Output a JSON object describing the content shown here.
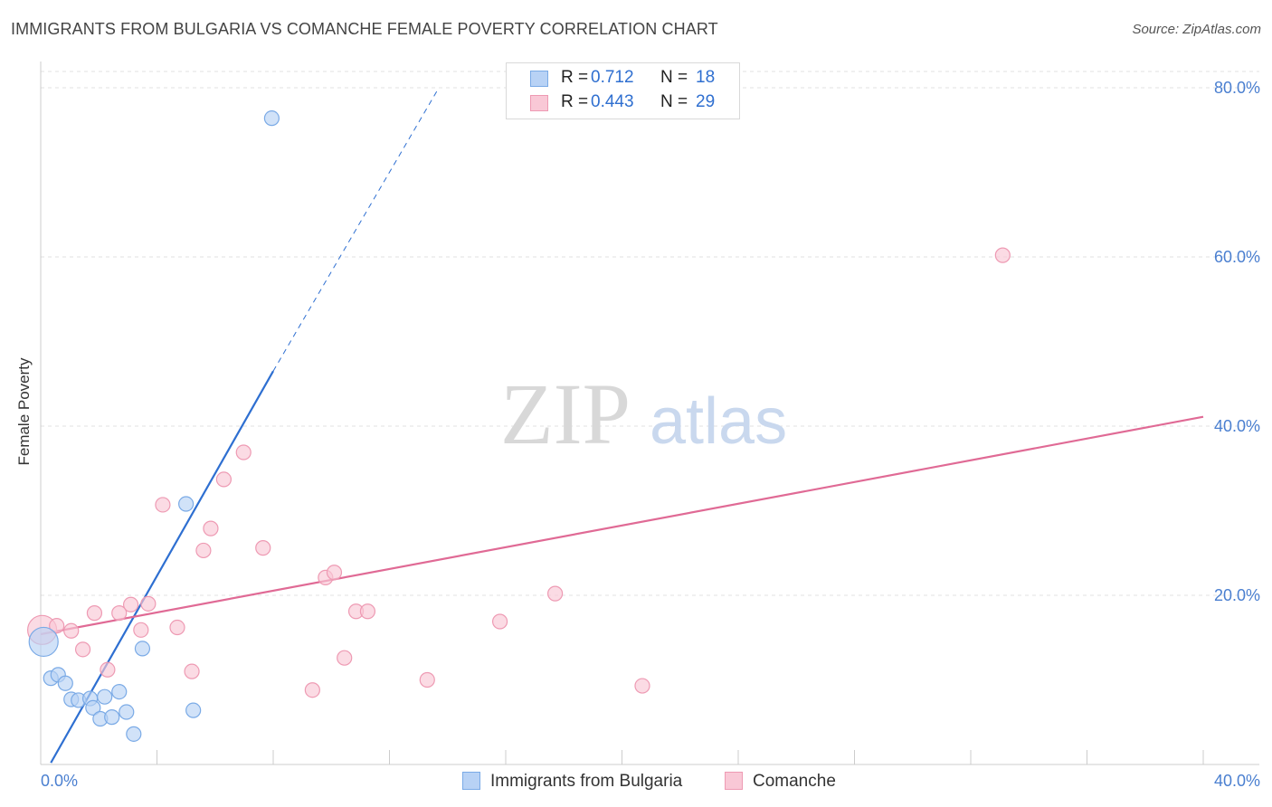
{
  "title": "IMMIGRANTS FROM BULGARIA VS COMANCHE FEMALE POVERTY CORRELATION CHART",
  "source": "Source: ZipAtlas.com",
  "watermark": {
    "zip": "ZIP",
    "atlas": "atlas"
  },
  "colors": {
    "bulgaria_fill": "#b8d2f5",
    "bulgaria_stroke": "#7aaae6",
    "bulgaria_line": "#2e6fd1",
    "comanche_fill": "#f9c8d6",
    "comanche_stroke": "#ee9ab3",
    "comanche_line": "#e06a95",
    "value_text": "#2f6fd0",
    "grid": "#e2e2e2"
  },
  "legend": {
    "rows": [
      {
        "r_label": "R =",
        "r_value": "0.712",
        "n_label": "N =",
        "n_value": "18"
      },
      {
        "r_label": "R =",
        "r_value": "0.443",
        "n_label": "N =",
        "n_value": "29"
      }
    ]
  },
  "bottom_legend": {
    "bulgaria": "Immigrants from Bulgaria",
    "comanche": "Comanche"
  },
  "chart_data": {
    "type": "scatter",
    "title": "IMMIGRANTS FROM BULGARIA VS COMANCHE FEMALE POVERTY CORRELATION CHART",
    "xlabel": "",
    "ylabel": "Female Poverty",
    "xlim": [
      0,
      40
    ],
    "ylim": [
      0,
      80
    ],
    "x_tick_labels": [
      "0.0%",
      "40.0%"
    ],
    "y_ticks": [
      20,
      40,
      60,
      80
    ],
    "y_tick_labels": [
      "20.0%",
      "40.0%",
      "60.0%",
      "80.0%"
    ],
    "grid": true,
    "series": [
      {
        "name": "Immigrants from Bulgaria",
        "R": 0.712,
        "N": 18,
        "points": [
          [
            0.1,
            14.5,
            "large"
          ],
          [
            0.35,
            10.2
          ],
          [
            0.6,
            10.6
          ],
          [
            0.85,
            9.6
          ],
          [
            1.05,
            7.7
          ],
          [
            1.3,
            7.6
          ],
          [
            1.7,
            7.8
          ],
          [
            1.8,
            6.7
          ],
          [
            2.05,
            5.4
          ],
          [
            2.2,
            8.0
          ],
          [
            2.45,
            5.6
          ],
          [
            2.7,
            8.6
          ],
          [
            2.95,
            6.2
          ],
          [
            3.2,
            3.6
          ],
          [
            3.5,
            13.7
          ],
          [
            5.0,
            30.8
          ],
          [
            5.25,
            6.4
          ],
          [
            7.95,
            76.4
          ]
        ],
        "trendline": {
          "x": [
            0.35,
            8.0
          ],
          "y": [
            0.2,
            46.5
          ]
        },
        "trendline_extension": {
          "x": [
            8.0,
            13.7
          ],
          "y": [
            46.5,
            80.0
          ]
        }
      },
      {
        "name": "Comanche",
        "R": 0.443,
        "N": 29,
        "points": [
          [
            0.05,
            15.9,
            "large"
          ],
          [
            0.55,
            16.4
          ],
          [
            1.05,
            15.8
          ],
          [
            1.45,
            13.6
          ],
          [
            1.85,
            17.9
          ],
          [
            2.3,
            11.2
          ],
          [
            2.7,
            17.9
          ],
          [
            3.1,
            18.9
          ],
          [
            3.45,
            15.9
          ],
          [
            3.7,
            19.0
          ],
          [
            4.2,
            30.7
          ],
          [
            4.7,
            16.2
          ],
          [
            5.2,
            11.0
          ],
          [
            5.6,
            25.3
          ],
          [
            5.85,
            27.9
          ],
          [
            6.3,
            33.7
          ],
          [
            6.98,
            36.9
          ],
          [
            7.65,
            25.6
          ],
          [
            9.35,
            8.8
          ],
          [
            9.8,
            22.1
          ],
          [
            10.1,
            22.7
          ],
          [
            10.45,
            12.6
          ],
          [
            10.85,
            18.1
          ],
          [
            11.25,
            18.1
          ],
          [
            13.3,
            10.0
          ],
          [
            15.8,
            16.9
          ],
          [
            17.7,
            20.2
          ],
          [
            20.7,
            9.3
          ],
          [
            33.1,
            60.2
          ]
        ],
        "trendline": {
          "x": [
            0.0,
            40.0
          ],
          "y": [
            15.4,
            41.1
          ]
        }
      }
    ]
  }
}
